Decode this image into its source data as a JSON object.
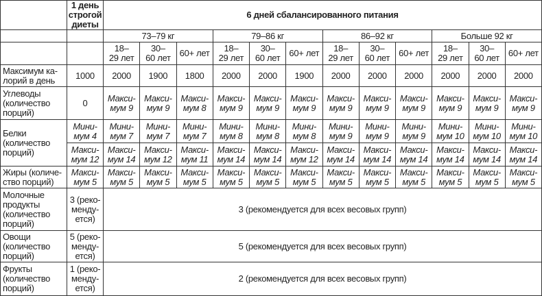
{
  "header": {
    "strict_day": "1 день\nстрогой\nдиеты",
    "balanced": "6 дней сбалансированного питания",
    "weight_groups": [
      "73–79 кг",
      "79–86 кг",
      "86–92 кг",
      "Больше 92 кг"
    ],
    "age_groups": [
      "18–\n29 лет",
      "30–\n60 лет",
      "60+ лет"
    ]
  },
  "rows": [
    {
      "label": "Максимум ка-\nлорий в день",
      "strict": "1000",
      "values": [
        "2000",
        "1900",
        "1800",
        "2000",
        "2000",
        "1900",
        "2000",
        "2000",
        "2000",
        "2000",
        "2000",
        "2000"
      ]
    },
    {
      "label": "Углеводы\n(количество\nпорций)",
      "strict": "0",
      "values": [
        "Макси-\nмум 9",
        "Макси-\nмум 9",
        "Макси-\nмум 8",
        "Макси-\nмум 9",
        "Макси-\nмум 9",
        "Макси-\nмум 9",
        "Макси-\nмум 9",
        "Макси-\nмум 9",
        "Макси-\nмум 9",
        "Макси-\nмум 9",
        "Макси-\nмум 9",
        "Макси-\nмум 9"
      ]
    },
    {
      "label": "Белки\n(количество\nпорций)",
      "strict": "Мини-\nмум 4",
      "values": [
        "Мини-\nмум 7",
        "Мини-\nмум 7",
        "Мини-\nмум 7",
        "Мини-\nмум 8",
        "Мини-\nмум 8",
        "Мини-\nмум 8",
        "Мини-\nмум 9",
        "Мини-\nмум 9",
        "Мини-\nмум 9",
        "Мини-\nмум 10",
        "Мини-\nмум 10",
        "Мини-\nмум 10"
      ],
      "strict2": "Макси-\nмум 12",
      "values2": [
        "Макси-\nмум 14",
        "Макси-\nмум 12",
        "Макси-\nмум 11",
        "Макси-\nмум 14",
        "Макси-\nмум 14",
        "Макси-\nмум 12",
        "Макси-\nмум 14",
        "Макси-\nмум 14",
        "Макси-\nмум 14",
        "Макси-\nмум 14",
        "Макси-\nмум 14",
        "Макси-\nмум 14"
      ]
    },
    {
      "label": "Жиры (количе-\nство порций)",
      "strict": "Макси-\nмум 5",
      "values": [
        "Макси-\nмум 5",
        "Макси-\nмум 5",
        "Макси-\nмум 5",
        "Макси-\nмум 5",
        "Макси-\nмум 5",
        "Макси-\nмум 5",
        "Макси-\nмум 5",
        "Макси-\nмум 5",
        "Макси-\nмум 5",
        "Макси-\nмум 5",
        "Макси-\nмум 5",
        "Макси-\nмум 5"
      ]
    },
    {
      "label": "Молочные\nпродукты\n(количество\nпорций)",
      "strict": "3 (реко-\nменду-\nется)",
      "merged": "3 (рекомендуется для всех весовых групп)"
    },
    {
      "label": "Овощи\n(количество\nпорций)",
      "strict": "5 (реко-\nменду-\nется)",
      "merged": "5 (рекомендуется для всех весовых групп)"
    },
    {
      "label": "Фрукты\n(количество\nпорций)",
      "strict": "1 (реко-\nменду-\nется)",
      "merged": "2 (рекомендуется для всех весовых групп)"
    }
  ]
}
